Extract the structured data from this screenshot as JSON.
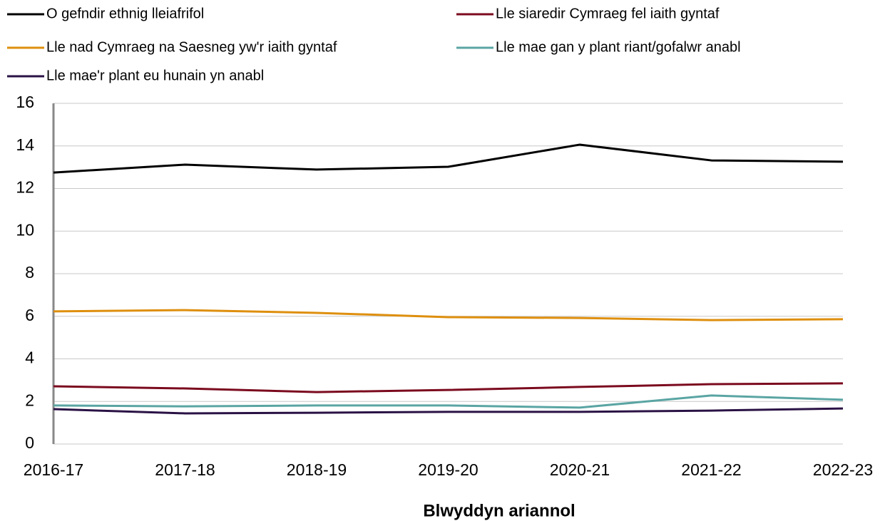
{
  "chart_data": {
    "type": "line",
    "x_label": "Blwyddyn ariannol",
    "categories": [
      "2016-17",
      "2017-18",
      "2018-19",
      "2019-20",
      "2020-21",
      "2021-22",
      "2022-23"
    ],
    "series": [
      {
        "name": "O gefndir ethnig lleiafrifol",
        "color": "#000000",
        "values": [
          12.75,
          13.12,
          12.89,
          13.02,
          14.06,
          13.32,
          13.26
        ]
      },
      {
        "name": "Lle siaredir Cymraeg fel iaith gyntaf",
        "color": "#7b0a1e",
        "values": [
          2.71,
          2.61,
          2.44,
          2.54,
          2.68,
          2.81,
          2.85
        ]
      },
      {
        "name": "Lle nad Cymraeg na Saesneg yw'r iaith gyntaf",
        "color": "#de8f0e",
        "values": [
          6.23,
          6.29,
          6.16,
          5.96,
          5.92,
          5.82,
          5.86
        ]
      },
      {
        "name": "Lle mae gan y plant riant/gofalwr anabl",
        "color": "#5aa5a3",
        "values": [
          1.81,
          1.77,
          1.81,
          1.81,
          1.71,
          2.28,
          2.08
        ]
      },
      {
        "name": "Lle mae'r plant eu hunain yn anabl",
        "color": "#2a1245",
        "values": [
          1.64,
          1.44,
          1.47,
          1.51,
          1.51,
          1.57,
          1.67
        ]
      }
    ],
    "ylim": [
      0,
      16
    ],
    "yticks": [
      0,
      2,
      4,
      6,
      8,
      10,
      12,
      14,
      16
    ],
    "grid": true,
    "legend": "top"
  }
}
